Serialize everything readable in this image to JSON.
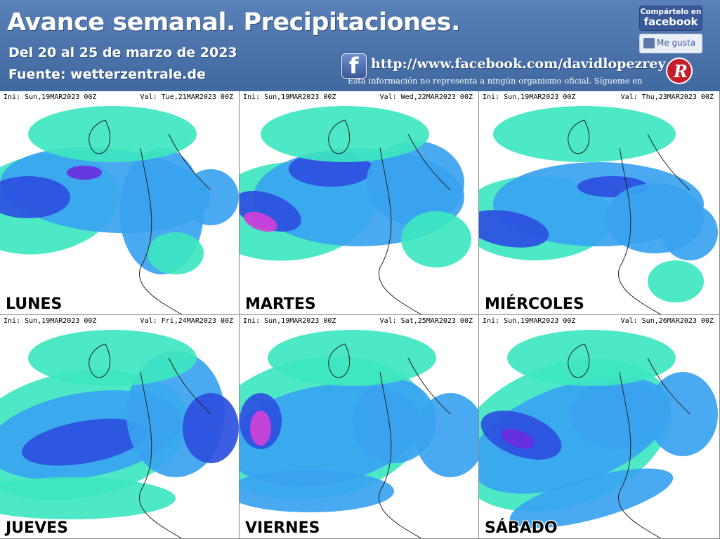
{
  "header": {
    "title": "Avance semanal. Precipitaciones.",
    "date_range": "Del 20 al 25 de marzo de 2023",
    "source": "Fuente: wetterzentrale.de",
    "url": "http://www.facebook.com/davidlopezrey",
    "disclaimer": "Esta información no representa a ningún organismo oficial. Sígueme en",
    "share_line1": "Compártelo en",
    "share_line2": "facebook",
    "like_label": "Me gusta",
    "fb_icon": "facebook-icon",
    "logo_icon": "dlr-logo-icon",
    "colors": {
      "banner": "#4a72a9",
      "facebook": "#3b5998",
      "logo": "#c81e2c"
    }
  },
  "panels": [
    {
      "ini": "Ini: Sun,19MAR2023 00Z",
      "val": "Val: Tue,21MAR2023 00Z",
      "day": "LUNES"
    },
    {
      "ini": "Ini: Sun,19MAR2023 00Z",
      "val": "Val: Wed,22MAR2023 00Z",
      "day": "MARTES"
    },
    {
      "ini": "Ini: Sun,19MAR2023 00Z",
      "val": "Val: Thu,23MAR2023 00Z",
      "day": "MIÉRCOLES"
    },
    {
      "ini": "Ini: Sun,19MAR2023 00Z",
      "val": "Val: Fri,24MAR2023 00Z",
      "day": "JUEVES"
    },
    {
      "ini": "Ini: Sun,19MAR2023 00Z",
      "val": "Val: Sat,25MAR2023 00Z",
      "day": "VIERNES"
    },
    {
      "ini": "Ini: Sun,19MAR2023 00Z",
      "val": "Val: Sun,26MAR2023 00Z",
      "day": "SÁBADO"
    }
  ],
  "precip_colors": {
    "light": "#3ee6c0",
    "medium": "#3aa3f0",
    "heavy": "#2d4fe0",
    "intense": "#6a2de0",
    "extreme": "#d040d8"
  }
}
